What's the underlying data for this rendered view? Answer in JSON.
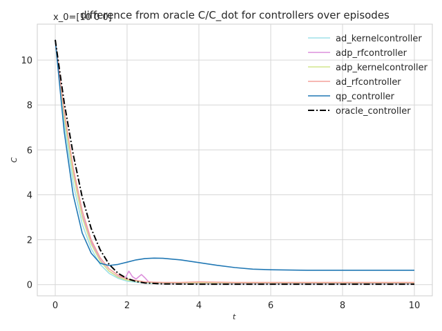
{
  "chart_data": {
    "type": "line",
    "title": "difference from oracle C/C_dot for controllers over episodes",
    "subtitle": "x_0=[10 0 0]",
    "xlabel": "t",
    "ylabel": "C",
    "xlim": [
      -0.5,
      10.5
    ],
    "ylim": [
      -0.5,
      11.6
    ],
    "xticks": [
      0,
      2,
      4,
      6,
      8,
      10
    ],
    "yticks": [
      0,
      2,
      4,
      6,
      8,
      10
    ],
    "grid": true,
    "legend_position": "top-right",
    "series": [
      {
        "name": "ad_kernelcontroller",
        "color": "#9ee0e8",
        "dash": "solid",
        "x": [
          0,
          0.25,
          0.5,
          0.75,
          1.0,
          1.25,
          1.5,
          1.75,
          2.0,
          2.5,
          3.0,
          4.0,
          5.0,
          6.0,
          7.0,
          8.0,
          9.0,
          10.0
        ],
        "y": [
          10.9,
          7.2,
          4.5,
          2.7,
          1.6,
          0.9,
          0.5,
          0.28,
          0.15,
          0.07,
          0.05,
          0.04,
          0.04,
          0.04,
          0.04,
          0.04,
          0.04,
          0.04
        ]
      },
      {
        "name": "adp_rfcontroller",
        "color": "#dc8fdc",
        "dash": "solid",
        "x": [
          0,
          0.25,
          0.5,
          0.75,
          1.0,
          1.25,
          1.5,
          1.75,
          1.95,
          2.05,
          2.15,
          2.25,
          2.4,
          2.5,
          2.6,
          2.8,
          3.0,
          4.0,
          5.0,
          6.0,
          7.0,
          8.0,
          9.0,
          10.0
        ],
        "y": [
          10.9,
          7.6,
          5.0,
          3.1,
          1.9,
          1.1,
          0.6,
          0.35,
          0.3,
          0.6,
          0.35,
          0.25,
          0.45,
          0.3,
          0.12,
          0.08,
          0.06,
          0.06,
          0.06,
          0.06,
          0.06,
          0.06,
          0.06,
          0.06
        ]
      },
      {
        "name": "adp_kernelcontroller",
        "color": "#d2e68c",
        "dash": "solid",
        "x": [
          0,
          0.25,
          0.5,
          0.75,
          1.0,
          1.25,
          1.5,
          1.75,
          2.0,
          2.5,
          3.0,
          4.0,
          5.0,
          6.0,
          7.0,
          8.0,
          9.0,
          10.0
        ],
        "y": [
          10.9,
          7.5,
          4.9,
          3.0,
          1.8,
          1.05,
          0.6,
          0.33,
          0.2,
          0.1,
          0.08,
          0.08,
          0.08,
          0.08,
          0.08,
          0.08,
          0.08,
          0.08
        ]
      },
      {
        "name": "ad_rfcontroller",
        "color": "#f4a09a",
        "dash": "solid",
        "x": [
          0,
          0.25,
          0.5,
          0.75,
          1.0,
          1.25,
          1.5,
          1.75,
          2.0,
          2.5,
          3.0,
          3.5,
          4.0,
          5.0,
          6.0,
          7.0,
          8.0,
          9.0,
          10.0
        ],
        "y": [
          10.9,
          7.7,
          5.2,
          3.3,
          2.0,
          1.2,
          0.7,
          0.42,
          0.25,
          0.12,
          0.1,
          0.1,
          0.12,
          0.1,
          0.1,
          0.1,
          0.1,
          0.1,
          0.1
        ]
      },
      {
        "name": "qp_controller",
        "color": "#1f77b4",
        "dash": "solid",
        "x": [
          0,
          0.25,
          0.5,
          0.75,
          1.0,
          1.25,
          1.5,
          1.75,
          2.0,
          2.25,
          2.5,
          2.75,
          3.0,
          3.5,
          4.0,
          4.5,
          5.0,
          5.5,
          6.0,
          7.0,
          8.0,
          9.0,
          10.0
        ],
        "y": [
          10.9,
          6.8,
          4.0,
          2.3,
          1.4,
          0.95,
          0.85,
          0.9,
          1.0,
          1.1,
          1.16,
          1.18,
          1.17,
          1.1,
          0.98,
          0.86,
          0.76,
          0.69,
          0.66,
          0.64,
          0.64,
          0.64,
          0.64
        ]
      },
      {
        "name": "oracle_controller",
        "color": "#000000",
        "dash": "dashdot",
        "x": [
          0,
          0.25,
          0.5,
          0.75,
          1.0,
          1.25,
          1.5,
          1.75,
          2.0,
          2.25,
          2.5,
          3.0,
          4.0,
          5.0,
          6.0,
          7.0,
          8.0,
          9.0,
          10.0
        ],
        "y": [
          10.9,
          8.1,
          5.8,
          3.9,
          2.5,
          1.55,
          0.9,
          0.5,
          0.27,
          0.14,
          0.07,
          0.03,
          0.02,
          0.02,
          0.02,
          0.02,
          0.02,
          0.02,
          0.02
        ]
      }
    ]
  }
}
